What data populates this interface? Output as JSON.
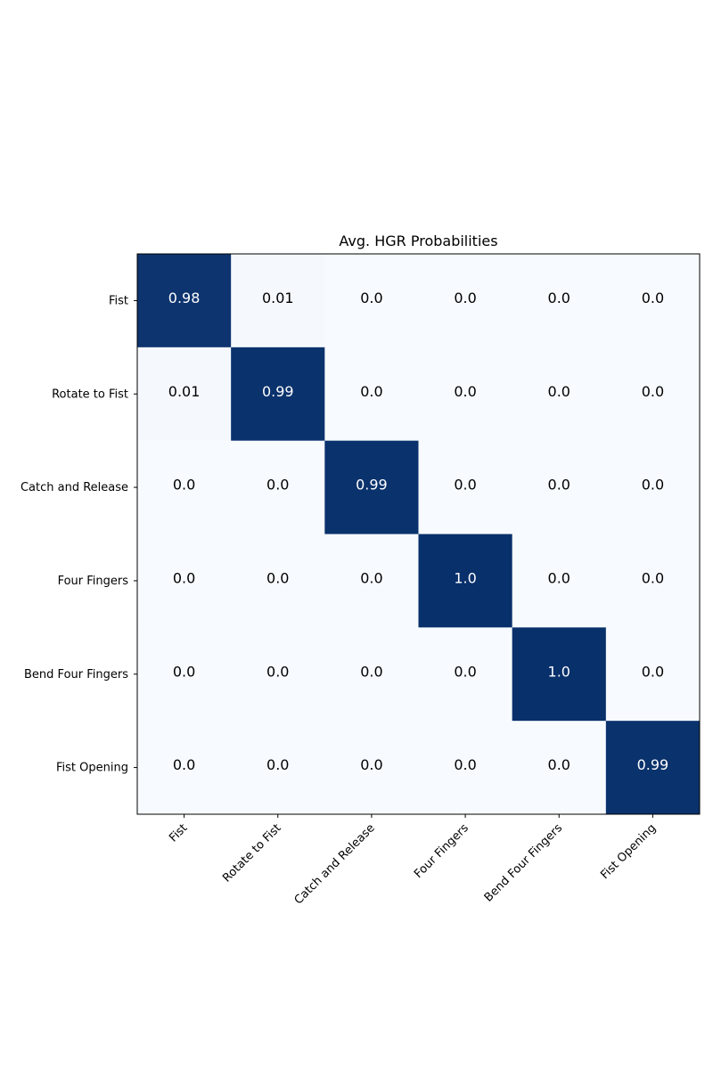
{
  "chart_data": {
    "type": "heatmap",
    "title": "Avg. HGR Probabilities",
    "xlabel": "",
    "ylabel": "",
    "rows": [
      "Fist",
      "Rotate to Fist",
      "Catch and Release",
      "Four Fingers",
      "Bend Four Fingers",
      "Fist Opening"
    ],
    "columns": [
      "Fist",
      "Rotate to Fist",
      "Catch and Release",
      "Four Fingers",
      "Bend Four Fingers",
      "Fist Opening"
    ],
    "values": [
      [
        0.98,
        0.01,
        0.0,
        0.0,
        0.0,
        0.0
      ],
      [
        0.01,
        0.99,
        0.0,
        0.0,
        0.0,
        0.0
      ],
      [
        0.0,
        0.0,
        0.99,
        0.0,
        0.0,
        0.0
      ],
      [
        0.0,
        0.0,
        0.0,
        1.0,
        0.0,
        0.0
      ],
      [
        0.0,
        0.0,
        0.0,
        0.0,
        1.0,
        0.0
      ],
      [
        0.0,
        0.0,
        0.0,
        0.0,
        0.0,
        0.99
      ]
    ],
    "value_labels": [
      [
        "0.98",
        "0.01",
        "0.0",
        "0.0",
        "0.0",
        "0.0"
      ],
      [
        "0.01",
        "0.99",
        "0.0",
        "0.0",
        "0.0",
        "0.0"
      ],
      [
        "0.0",
        "0.0",
        "0.99",
        "0.0",
        "0.0",
        "0.0"
      ],
      [
        "0.0",
        "0.0",
        "0.0",
        "1.0",
        "0.0",
        "0.0"
      ],
      [
        "0.0",
        "0.0",
        "0.0",
        "0.0",
        "1.0",
        "0.0"
      ],
      [
        "0.0",
        "0.0",
        "0.0",
        "0.0",
        "0.0",
        "0.99"
      ]
    ],
    "colormap": "Blues",
    "color_low": "#f7fbff",
    "color_high": "#08306b",
    "grid": false
  }
}
